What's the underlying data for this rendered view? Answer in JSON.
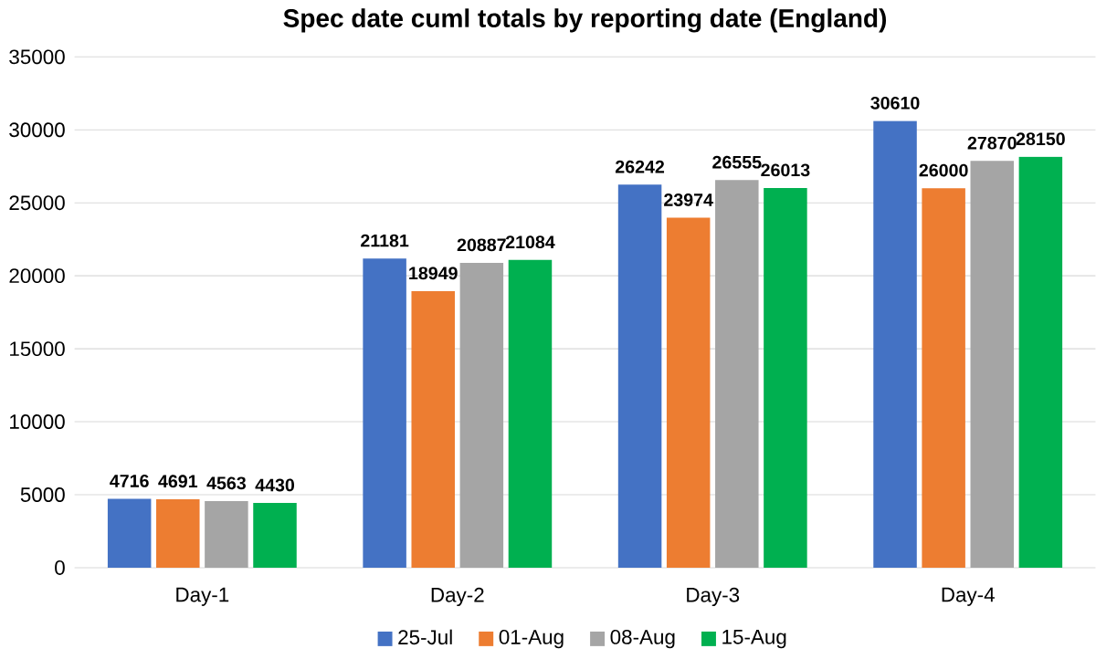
{
  "chart_data": {
    "type": "bar",
    "title": "Spec date cuml totals by reporting date (England)",
    "categories": [
      "Day-1",
      "Day-2",
      "Day-3",
      "Day-4"
    ],
    "series": [
      {
        "name": "25-Jul",
        "color": "#4472c4",
        "values": [
          4716,
          21181,
          26242,
          30610
        ]
      },
      {
        "name": "01-Aug",
        "color": "#ed7d31",
        "values": [
          4691,
          18949,
          23974,
          26000
        ]
      },
      {
        "name": "08-Aug",
        "color": "#a5a5a5",
        "values": [
          4563,
          20887,
          26555,
          27870
        ]
      },
      {
        "name": "15-Aug",
        "color": "#00b050",
        "values": [
          4430,
          21084,
          26013,
          28150
        ]
      }
    ],
    "ylim": [
      0,
      35000
    ],
    "yticks": [
      0,
      5000,
      10000,
      15000,
      20000,
      25000,
      30000,
      35000
    ],
    "grid": "y",
    "legend": "bottom",
    "data_labels": true
  }
}
